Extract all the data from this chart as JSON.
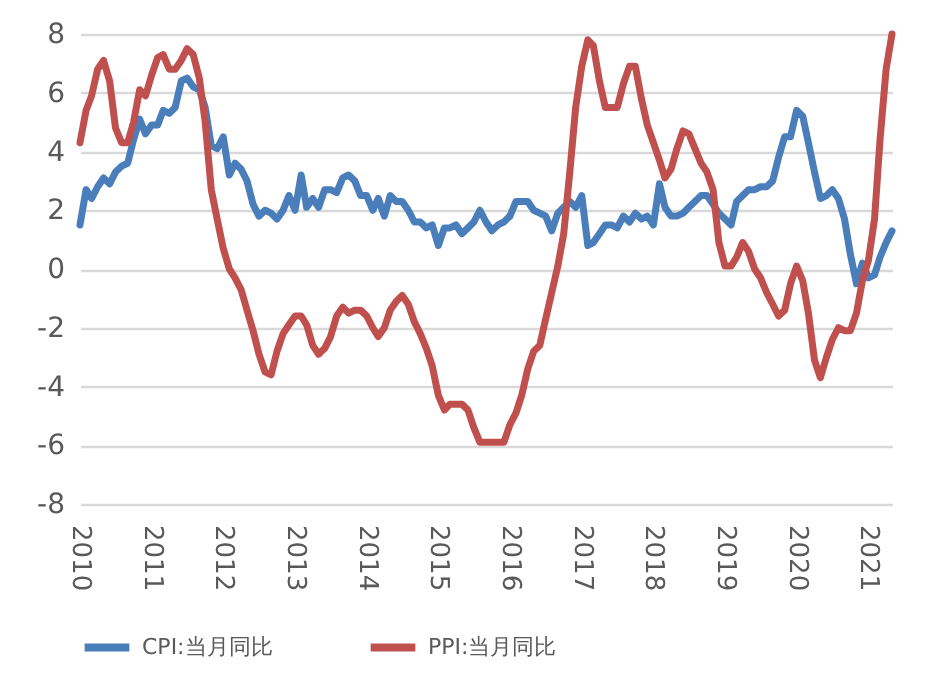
{
  "chart_data": {
    "type": "line",
    "x": [
      "2010-01",
      "2010-02",
      "2010-03",
      "2010-04",
      "2010-05",
      "2010-06",
      "2010-07",
      "2010-08",
      "2010-09",
      "2010-10",
      "2010-11",
      "2010-12",
      "2011-01",
      "2011-02",
      "2011-03",
      "2011-04",
      "2011-05",
      "2011-06",
      "2011-07",
      "2011-08",
      "2011-09",
      "2011-10",
      "2011-11",
      "2011-12",
      "2012-01",
      "2012-02",
      "2012-03",
      "2012-04",
      "2012-05",
      "2012-06",
      "2012-07",
      "2012-08",
      "2012-09",
      "2012-10",
      "2012-11",
      "2012-12",
      "2013-01",
      "2013-02",
      "2013-03",
      "2013-04",
      "2013-05",
      "2013-06",
      "2013-07",
      "2013-08",
      "2013-09",
      "2013-10",
      "2013-11",
      "2013-12",
      "2014-01",
      "2014-02",
      "2014-03",
      "2014-04",
      "2014-05",
      "2014-06",
      "2014-07",
      "2014-08",
      "2014-09",
      "2014-10",
      "2014-11",
      "2014-12",
      "2015-01",
      "2015-02",
      "2015-03",
      "2015-04",
      "2015-05",
      "2015-06",
      "2015-07",
      "2015-08",
      "2015-09",
      "2015-10",
      "2015-11",
      "2015-12",
      "2016-01",
      "2016-02",
      "2016-03",
      "2016-04",
      "2016-05",
      "2016-06",
      "2016-07",
      "2016-08",
      "2016-09",
      "2016-10",
      "2016-11",
      "2016-12",
      "2017-01",
      "2017-02",
      "2017-03",
      "2017-04",
      "2017-05",
      "2017-06",
      "2017-07",
      "2017-08",
      "2017-09",
      "2017-10",
      "2017-11",
      "2017-12",
      "2018-01",
      "2018-02",
      "2018-03",
      "2018-04",
      "2018-05",
      "2018-06",
      "2018-07",
      "2018-08",
      "2018-09",
      "2018-10",
      "2018-11",
      "2018-12",
      "2019-01",
      "2019-02",
      "2019-03",
      "2019-04",
      "2019-05",
      "2019-06",
      "2019-07",
      "2019-08",
      "2019-09",
      "2019-10",
      "2019-11",
      "2019-12",
      "2020-01",
      "2020-02",
      "2020-03",
      "2020-04",
      "2020-05",
      "2020-06",
      "2020-07",
      "2020-08",
      "2020-09",
      "2020-10",
      "2020-11",
      "2020-12",
      "2021-01",
      "2021-02",
      "2021-03",
      "2021-04",
      "2021-05"
    ],
    "series": [
      {
        "name": "CPI:当月同比",
        "color": "#4a7ebb",
        "values": [
          1.5,
          2.7,
          2.4,
          2.8,
          3.1,
          2.9,
          3.3,
          3.5,
          3.6,
          4.4,
          5.1,
          4.6,
          4.9,
          4.9,
          5.4,
          5.3,
          5.5,
          6.4,
          6.5,
          6.2,
          6.1,
          5.5,
          4.2,
          4.1,
          4.5,
          3.2,
          3.6,
          3.4,
          3.0,
          2.2,
          1.8,
          2.0,
          1.9,
          1.7,
          2.0,
          2.5,
          2.0,
          3.2,
          2.1,
          2.4,
          2.1,
          2.7,
          2.7,
          2.6,
          3.1,
          3.2,
          3.0,
          2.5,
          2.5,
          2.0,
          2.4,
          1.8,
          2.5,
          2.3,
          2.3,
          2.0,
          1.6,
          1.6,
          1.4,
          1.5,
          0.8,
          1.4,
          1.4,
          1.5,
          1.2,
          1.4,
          1.6,
          2.0,
          1.6,
          1.3,
          1.5,
          1.6,
          1.8,
          2.3,
          2.3,
          2.3,
          2.0,
          1.9,
          1.8,
          1.3,
          1.9,
          2.1,
          2.3,
          2.1,
          2.5,
          0.8,
          0.9,
          1.2,
          1.5,
          1.5,
          1.4,
          1.8,
          1.6,
          1.9,
          1.7,
          1.8,
          1.5,
          2.9,
          2.1,
          1.8,
          1.8,
          1.9,
          2.1,
          2.3,
          2.5,
          2.5,
          2.2,
          1.9,
          1.7,
          1.5,
          2.3,
          2.5,
          2.7,
          2.7,
          2.8,
          2.8,
          3.0,
          3.8,
          4.5,
          4.5,
          5.4,
          5.2,
          4.3,
          3.3,
          2.4,
          2.5,
          2.7,
          2.4,
          1.7,
          0.5,
          -0.5,
          0.2,
          -0.3,
          -0.2,
          0.4,
          0.9,
          1.3
        ]
      },
      {
        "name": "PPI:当月同比",
        "color": "#c0504d",
        "values": [
          4.3,
          5.4,
          5.9,
          6.8,
          7.1,
          6.4,
          4.8,
          4.3,
          4.3,
          5.0,
          6.1,
          5.9,
          6.6,
          7.2,
          7.3,
          6.8,
          6.8,
          7.1,
          7.5,
          7.3,
          6.5,
          5.0,
          2.7,
          1.7,
          0.7,
          0.0,
          -0.3,
          -0.7,
          -1.4,
          -2.1,
          -2.9,
          -3.5,
          -3.6,
          -2.8,
          -2.2,
          -1.9,
          -1.6,
          -1.6,
          -1.9,
          -2.6,
          -2.9,
          -2.7,
          -2.3,
          -1.6,
          -1.3,
          -1.5,
          -1.4,
          -1.4,
          -1.6,
          -2.0,
          -2.3,
          -2.0,
          -1.4,
          -1.1,
          -0.9,
          -1.2,
          -1.8,
          -2.2,
          -2.7,
          -3.3,
          -4.3,
          -4.8,
          -4.6,
          -4.6,
          -4.6,
          -4.8,
          -5.4,
          -5.9,
          -5.9,
          -5.9,
          -5.9,
          -5.9,
          -5.3,
          -4.9,
          -4.3,
          -3.4,
          -2.8,
          -2.6,
          -1.7,
          -0.8,
          0.1,
          1.2,
          3.3,
          5.5,
          6.9,
          7.8,
          7.6,
          6.4,
          5.5,
          5.5,
          5.5,
          6.3,
          6.9,
          6.9,
          5.8,
          4.9,
          4.3,
          3.7,
          3.1,
          3.4,
          4.1,
          4.7,
          4.6,
          4.1,
          3.6,
          3.3,
          2.7,
          0.9,
          0.1,
          0.1,
          0.4,
          0.9,
          0.6,
          0.0,
          -0.3,
          -0.8,
          -1.2,
          -1.6,
          -1.4,
          -0.5,
          0.1,
          -0.4,
          -1.5,
          -3.1,
          -3.7,
          -3.0,
          -2.4,
          -2.0,
          -2.1,
          -2.1,
          -1.5,
          -0.4,
          0.3,
          1.7,
          4.4,
          6.8,
          8
        ]
      }
    ],
    "xlim": [
      "2010-01",
      "2021-05"
    ],
    "xticks": [
      "2010",
      "2011",
      "2012",
      "2013",
      "2014",
      "2015",
      "2016",
      "2017",
      "2018",
      "2019",
      "2020",
      "2021"
    ],
    "ylim": [
      -8,
      8
    ],
    "yticks": [
      -8,
      -6,
      -4,
      -2,
      0,
      2,
      4,
      6,
      8
    ],
    "grid": "y",
    "legend": "bottom",
    "line_style": "solid"
  }
}
